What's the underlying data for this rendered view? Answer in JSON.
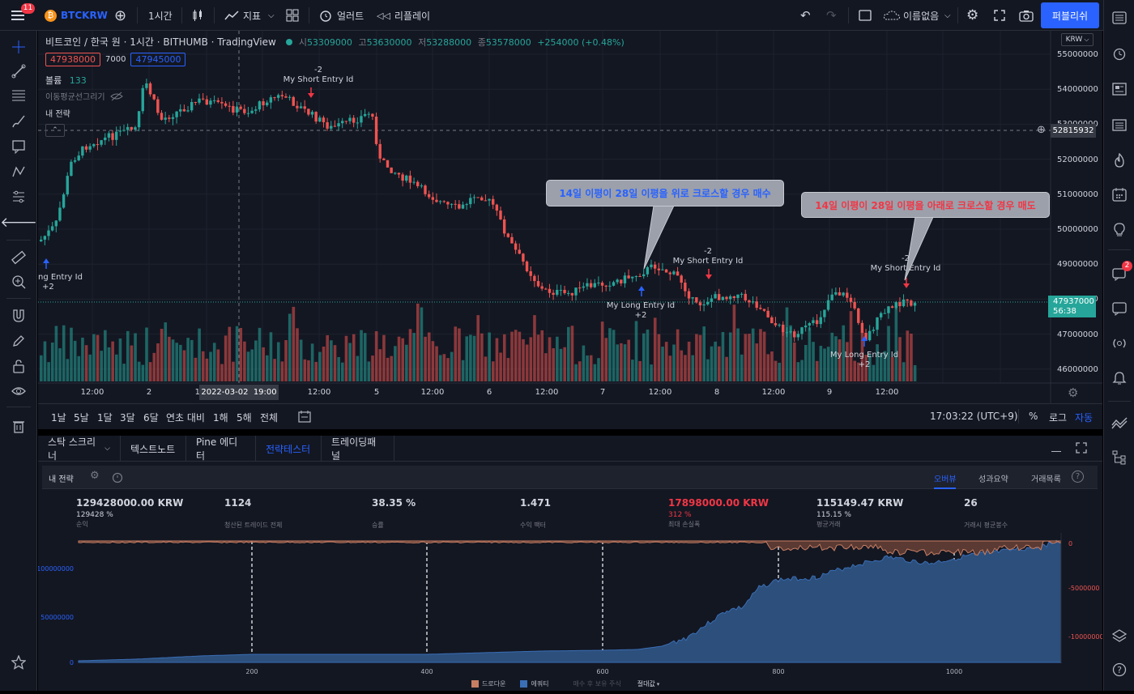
{
  "topbar": {
    "notif_count": "11",
    "symbol": "BTCKRW",
    "interval": "1시간",
    "indicators": "지표",
    "alert": "얼러트",
    "replay": "리플레이",
    "layout_name": "이름없음",
    "publish": "퍼블리쉬"
  },
  "legend": {
    "title": "비트코인 / 한국 원 · 1시간 · BITHUMB · TradingView",
    "o_label": "시",
    "o": "53309000",
    "h_label": "고",
    "h": "53630000",
    "l_label": "저",
    "l": "53288000",
    "c_label": "종",
    "c": "53578000",
    "change": "+254000 (+0.48%)",
    "sell_price": "47938000",
    "spread": "7000",
    "buy_price": "47945000",
    "volume_label": "볼륨",
    "volume_value": "133",
    "ma_label": "이동평균선그리기",
    "strategy_label": "내 전략",
    "currency": "KRW"
  },
  "price_axis": {
    "ticks": [
      "55000000",
      "54000000",
      "53000000",
      "52000000",
      "51000000",
      "50000000",
      "49000000",
      "48000000",
      "47000000",
      "46000000"
    ],
    "crosshair_price": "52815932",
    "last_price": "47937000",
    "countdown": "56:38"
  },
  "time_axis": {
    "ticks": [
      "12:00",
      "2",
      "12:00",
      "4",
      "12:00",
      "5",
      "12:00",
      "6",
      "12:00",
      "7",
      "12:00",
      "8",
      "12:00",
      "9",
      "12:00"
    ],
    "crosshair_time": "2022-03-02  19:00"
  },
  "annotations": {
    "short1_qty": "-2",
    "short1_label": "My Short Entry Id",
    "long0_label": "ng Entry Id",
    "long0_qty": "+2",
    "long1_label": "My Long Entry Id",
    "long1_qty": "+2",
    "short2_qty": "-2",
    "short2_label": "My Short Entry Id",
    "short3_qty": "-2",
    "short3_label": "My Short Entry Id",
    "long2_label": "My Long Entry Id",
    "long2_qty": "+2",
    "callout_buy": "14일 이평이 28일 이평을 위로 크로스할 경우 매수",
    "callout_sell": "14일 이평이 28일 이평을 아래로 크로스할 경우 매도"
  },
  "timeframes": {
    "items": [
      "1날",
      "5날",
      "1달",
      "3달",
      "6달",
      "연초 대비",
      "1해",
      "5해",
      "전체"
    ],
    "clock": "17:03:22 (UTC+9)",
    "percent": "%",
    "log": "로그",
    "auto": "자동"
  },
  "bottom_tabs": [
    "스탁 스크리너",
    "텍스트노트",
    "Pine 에디터",
    "전략테스터",
    "트레이딩패널"
  ],
  "strategy": {
    "name": "내 전략",
    "tabs": [
      "오버뷰",
      "성과요약",
      "거래목록"
    ],
    "stats": [
      {
        "value": "129428000.00 KRW",
        "sub": "129428 %",
        "label": "순익"
      },
      {
        "value": "1124",
        "sub": "",
        "label": "청산된 트레이드 전체"
      },
      {
        "value": "38.35 %",
        "sub": "",
        "label": "승률"
      },
      {
        "value": "1.471",
        "sub": "",
        "label": "수익 팩터"
      },
      {
        "value": "17898000.00 KRW",
        "sub": "312 %",
        "label": "최대 손실폭"
      },
      {
        "value": "115149.47 KRW",
        "sub": "115.15 %",
        "label": "평균거래"
      },
      {
        "value": "26",
        "sub": "",
        "label": "거래시 평균봉수"
      }
    ],
    "equity_axis_left": [
      "100000000",
      "50000000",
      "0"
    ],
    "equity_axis_right": [
      "0",
      "-5000000",
      "-10000000"
    ],
    "equity_axis_x": [
      "200",
      "400",
      "600",
      "800",
      "1000"
    ],
    "legend": [
      "드로다운",
      "에쿼티",
      "매수 후 보유 주식",
      "절대값"
    ]
  },
  "colors": {
    "up": "#26a69a",
    "down": "#ef5350",
    "accent": "#2962ff",
    "equity": "#2c5a8c",
    "drawdown": "#c87e63"
  }
}
